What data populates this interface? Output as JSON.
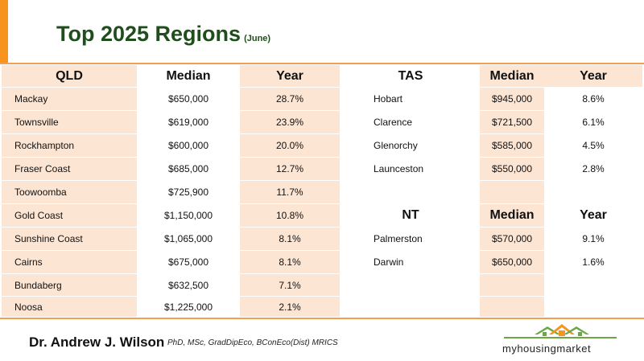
{
  "title": {
    "main": "Top 2025 Regions",
    "sub": "(June)"
  },
  "qld": {
    "headers": [
      "QLD",
      "Median",
      "Year"
    ],
    "rows": [
      [
        "Mackay",
        "$650,000",
        "28.7%"
      ],
      [
        "Townsville",
        "$619,000",
        "23.9%"
      ],
      [
        "Rockhampton",
        "$600,000",
        "20.0%"
      ],
      [
        "Fraser Coast",
        "$685,000",
        "12.7%"
      ],
      [
        "Toowoomba",
        "$725,900",
        "11.7%"
      ],
      [
        "Gold Coast",
        "$1,150,000",
        "10.8%"
      ],
      [
        "Sunshine Coast",
        "$1,065,000",
        "8.1%"
      ],
      [
        "Cairns",
        "$675,000",
        "8.1%"
      ],
      [
        "Bundaberg",
        "$632,500",
        "7.1%"
      ],
      [
        "Noosa",
        "$1,225,000",
        "2.1%"
      ]
    ]
  },
  "tas": {
    "headers": [
      "TAS",
      "Median",
      "Year"
    ],
    "rows": [
      [
        "Hobart",
        "$945,000",
        "8.6%"
      ],
      [
        "Clarence",
        "$721,500",
        "6.1%"
      ],
      [
        "Glenorchy",
        "$585,000",
        "4.5%"
      ],
      [
        "Launceston",
        "$550,000",
        "2.8%"
      ]
    ]
  },
  "nt": {
    "headers": [
      "NT",
      "Median",
      "Year"
    ],
    "rows": [
      [
        "Palmerston",
        "$570,000",
        "9.1%"
      ],
      [
        "Darwin",
        "$650,000",
        "1.6%"
      ]
    ]
  },
  "footer": {
    "author": "Dr. Andrew J. Wilson",
    "credentials": "PhD, MSc, GradDipEco, BConEco(Dist) MRICS",
    "logo_text": "myhousingmarket"
  },
  "colors": {
    "accent": "#f7941d",
    "title_green": "#1f4e1c",
    "peach": "#fde5d3",
    "logo_green": "#6aa843"
  }
}
